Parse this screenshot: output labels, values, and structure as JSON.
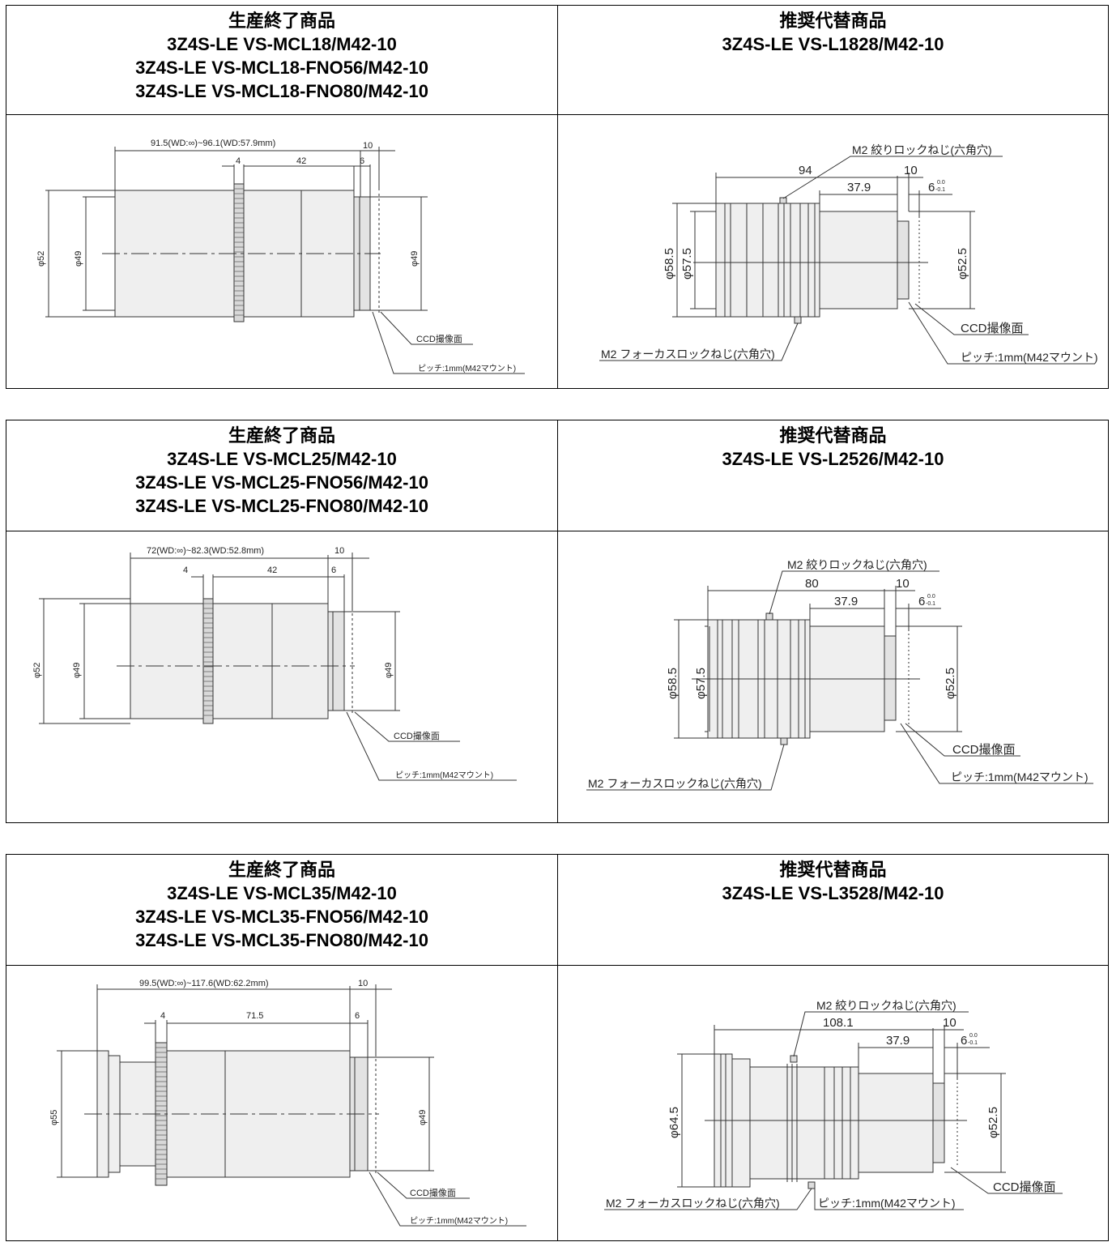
{
  "sections": [
    {
      "discontinued": {
        "heading": "生産終了商品",
        "models": [
          "3Z4S-LE VS-MCL18/M42-10",
          "3Z4S-LE VS-MCL18-FNO56/M42-10",
          "3Z4S-LE VS-MCL18-FNO80/M42-10"
        ],
        "drawing": {
          "total_dim": "91.5(WD:∞)~96.1(WD:57.9mm)",
          "dim_a": "4",
          "dim_b": "42",
          "dim_c": "6",
          "dim_d": "10",
          "dia_outer": "φ52",
          "dia_inner": "φ49",
          "dia_mount": "φ49",
          "ccd_label": "CCD撮像面",
          "pitch_label": "ピッチ:1mm(M42マウント)"
        }
      },
      "replacement": {
        "heading": "推奨代替商品",
        "models": [
          "3Z4S-LE VS-L1828/M42-10"
        ],
        "drawing": {
          "iris_screw": "M2 絞りロックねじ(六角穴)",
          "focus_screw": "M2 フォーカスロックねじ(六角穴)",
          "dim_total": "94",
          "dim_a": "37.9",
          "dim_b": "10",
          "dim_c": "6",
          "tol_upper": "0.0",
          "tol_lower": "-0.1",
          "dia_outer": "φ58.5",
          "dia_inner": "φ57.5",
          "dia_mount": "φ52.5",
          "ccd_label": "CCD撮像面",
          "pitch_label": "ピッチ:1mm(M42マウント)"
        }
      }
    },
    {
      "discontinued": {
        "heading": "生産終了商品",
        "models": [
          "3Z4S-LE VS-MCL25/M42-10",
          "3Z4S-LE VS-MCL25-FNO56/M42-10",
          "3Z4S-LE VS-MCL25-FNO80/M42-10"
        ],
        "drawing": {
          "total_dim": "72(WD:∞)~82.3(WD:52.8mm)",
          "dim_a": "4",
          "dim_b": "42",
          "dim_c": "6",
          "dim_d": "10",
          "dia_outer": "φ52",
          "dia_inner": "φ49",
          "dia_mount": "φ49",
          "ccd_label": "CCD撮像面",
          "pitch_label": "ピッチ:1mm(M42マウント)"
        }
      },
      "replacement": {
        "heading": "推奨代替商品",
        "models": [
          "3Z4S-LE VS-L2526/M42-10"
        ],
        "drawing": {
          "iris_screw": "M2 絞りロックねじ(六角穴)",
          "focus_screw": "M2 フォーカスロックねじ(六角穴)",
          "dim_total": "80",
          "dim_a": "37.9",
          "dim_b": "10",
          "dim_c": "6",
          "tol_upper": "0.0",
          "tol_lower": "-0.1",
          "dia_outer": "φ58.5",
          "dia_inner": "φ57.5",
          "dia_mount": "φ52.5",
          "ccd_label": "CCD撮像面",
          "pitch_label": "ピッチ:1mm(M42マウント)"
        }
      }
    },
    {
      "discontinued": {
        "heading": "生産終了商品",
        "models": [
          "3Z4S-LE VS-MCL35/M42-10",
          "3Z4S-LE VS-MCL35-FNO56/M42-10",
          "3Z4S-LE VS-MCL35-FNO80/M42-10"
        ],
        "drawing": {
          "total_dim": "99.5(WD:∞)~117.6(WD:62.2mm)",
          "dim_a": "4",
          "dim_b": "71.5",
          "dim_c": "6",
          "dim_d": "10",
          "dia_outer": "φ55",
          "dia_mount": "φ49",
          "ccd_label": "CCD撮像面",
          "pitch_label": "ピッチ:1mm(M42マウント)"
        }
      },
      "replacement": {
        "heading": "推奨代替商品",
        "models": [
          "3Z4S-LE VS-L3528/M42-10"
        ],
        "drawing": {
          "iris_screw": "M2 絞りロックねじ(六角穴)",
          "focus_screw": "M2 フォーカスロックねじ(六角穴)",
          "dim_total": "108.1",
          "dim_a": "37.9",
          "dim_b": "10",
          "dim_c": "6",
          "tol_upper": "0.0",
          "tol_lower": "-0.1",
          "dia_outer": "φ64.5",
          "dia_mount": "φ52.5",
          "ccd_label": "CCD撮像面",
          "pitch_label": "ピッチ:1mm(M42マウント)"
        }
      }
    }
  ]
}
